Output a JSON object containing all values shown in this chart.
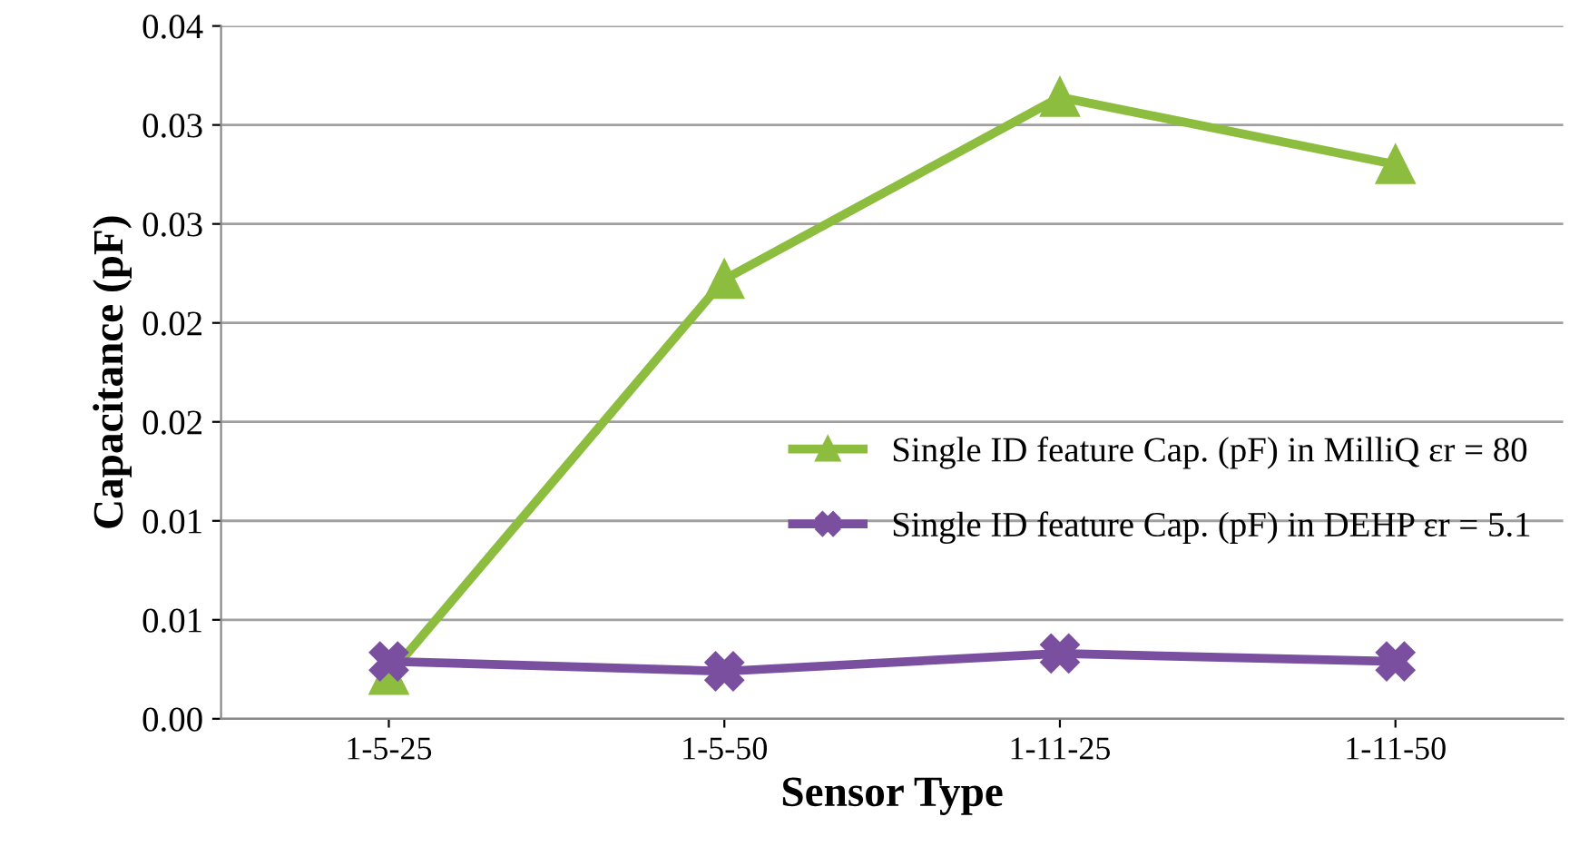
{
  "chart_data": {
    "type": "line",
    "xlabel": "Sensor Type",
    "ylabel": "Capacitance (pF)",
    "categories": [
      "1-5-25",
      "1-5-50",
      "1-11-25",
      "1-11-50"
    ],
    "series": [
      {
        "name": "Single ID feature Cap. (pF) in MilliQ εr = 80",
        "color": "#8cbd3f",
        "marker": "triangle",
        "values": [
          0.0022,
          0.0222,
          0.0314,
          0.028
        ]
      },
      {
        "name": "Single ID feature Cap. (pF) in DEHP εr = 5.1",
        "color": "#7b4fa0",
        "marker": "cross",
        "values": [
          0.0029,
          0.0024,
          0.0033,
          0.0029
        ]
      }
    ],
    "ylim": [
      0,
      0.035
    ],
    "yticks": [
      {
        "value": 0,
        "label": "0.00"
      },
      {
        "value": 0.005,
        "label": "0.01"
      },
      {
        "value": 0.01,
        "label": "0.01"
      },
      {
        "value": 0.015,
        "label": "0.02"
      },
      {
        "value": 0.02,
        "label": "0.02"
      },
      {
        "value": 0.025,
        "label": "0.03"
      },
      {
        "value": 0.03,
        "label": "0.03"
      },
      {
        "value": 0.035,
        "label": "0.04"
      }
    ],
    "grid": "y",
    "legend": "right"
  }
}
